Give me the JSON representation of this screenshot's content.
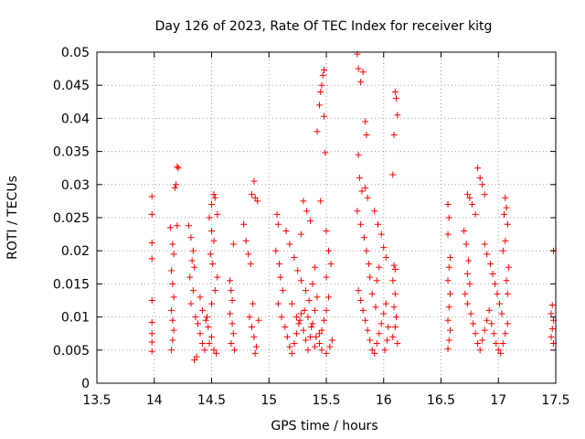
{
  "chart_data": {
    "type": "scatter",
    "title": "Day 126 of 2023, Rate Of TEC Index for receiver kitg",
    "xlabel": "GPS time / hours",
    "ylabel": "ROTI / TECUs",
    "xlim": [
      13.5,
      17.5
    ],
    "ylim": [
      0,
      0.05
    ],
    "x_ticks": [
      13.5,
      14,
      14.5,
      15,
      15.5,
      16,
      16.5,
      17,
      17.5
    ],
    "x_tick_labels": [
      "13.5",
      "14",
      "14.5",
      "15",
      "15.5",
      "16",
      "16.5",
      "17",
      "17.5"
    ],
    "y_ticks": [
      0,
      0.005,
      0.01,
      0.015,
      0.02,
      0.025,
      0.03,
      0.035,
      0.04,
      0.045,
      0.05
    ],
    "y_tick_labels": [
      "0",
      "0.005",
      "0.01",
      "0.015",
      "0.02",
      "0.025",
      "0.03",
      "0.035",
      "0.04",
      "0.045",
      "0.05"
    ],
    "grid": true,
    "marker": "plus",
    "series_color": "#ff0000",
    "series": [
      {
        "name": "ROTI",
        "points": [
          [
            13.98,
            0.0282
          ],
          [
            13.98,
            0.0255
          ],
          [
            13.98,
            0.0212
          ],
          [
            13.98,
            0.0188
          ],
          [
            13.98,
            0.0092
          ],
          [
            13.98,
            0.0075
          ],
          [
            13.98,
            0.0062
          ],
          [
            13.98,
            0.0048
          ],
          [
            13.98,
            0.0125
          ],
          [
            14.14,
            0.0235
          ],
          [
            14.16,
            0.021
          ],
          [
            14.17,
            0.0195
          ],
          [
            14.15,
            0.017
          ],
          [
            14.16,
            0.015
          ],
          [
            14.17,
            0.013
          ],
          [
            14.15,
            0.011
          ],
          [
            14.16,
            0.0095
          ],
          [
            14.17,
            0.008
          ],
          [
            14.16,
            0.0065
          ],
          [
            14.15,
            0.005
          ],
          [
            14.18,
            0.0295
          ],
          [
            14.19,
            0.03
          ],
          [
            14.2,
            0.0327
          ],
          [
            14.21,
            0.0325
          ],
          [
            14.2,
            0.0238
          ],
          [
            14.3,
            0.0238
          ],
          [
            14.32,
            0.022
          ],
          [
            14.34,
            0.02
          ],
          [
            14.33,
            0.0185
          ],
          [
            14.35,
            0.0175
          ],
          [
            14.31,
            0.016
          ],
          [
            14.34,
            0.014
          ],
          [
            14.32,
            0.012
          ],
          [
            14.36,
            0.01
          ],
          [
            14.38,
            0.009
          ],
          [
            14.4,
            0.0075
          ],
          [
            14.42,
            0.006
          ],
          [
            14.44,
            0.005
          ],
          [
            14.37,
            0.004
          ],
          [
            14.35,
            0.0035
          ],
          [
            14.4,
            0.013
          ],
          [
            14.42,
            0.011
          ],
          [
            14.45,
            0.0095
          ],
          [
            14.47,
            0.0085
          ],
          [
            14.5,
            0.007
          ],
          [
            14.48,
            0.006
          ],
          [
            14.52,
            0.005
          ],
          [
            14.54,
            0.0045
          ],
          [
            14.46,
            0.01
          ],
          [
            14.5,
            0.012
          ],
          [
            14.53,
            0.014
          ],
          [
            14.55,
            0.016
          ],
          [
            14.51,
            0.018
          ],
          [
            14.49,
            0.0195
          ],
          [
            14.52,
            0.0215
          ],
          [
            14.5,
            0.023
          ],
          [
            14.48,
            0.025
          ],
          [
            14.5,
            0.027
          ],
          [
            14.52,
            0.0285
          ],
          [
            14.53,
            0.028
          ],
          [
            14.55,
            0.0255
          ],
          [
            14.66,
            0.0155
          ],
          [
            14.67,
            0.014
          ],
          [
            14.68,
            0.0125
          ],
          [
            14.66,
            0.0105
          ],
          [
            14.68,
            0.009
          ],
          [
            14.69,
            0.0075
          ],
          [
            14.67,
            0.006
          ],
          [
            14.7,
            0.005
          ],
          [
            14.69,
            0.021
          ],
          [
            14.78,
            0.024
          ],
          [
            14.8,
            0.0215
          ],
          [
            14.82,
            0.0195
          ],
          [
            14.84,
            0.018
          ],
          [
            14.85,
            0.0285
          ],
          [
            14.87,
            0.0305
          ],
          [
            14.88,
            0.028
          ],
          [
            14.9,
            0.0275
          ],
          [
            14.83,
            0.01
          ],
          [
            14.85,
            0.0085
          ],
          [
            14.87,
            0.007
          ],
          [
            14.89,
            0.0055
          ],
          [
            14.86,
            0.012
          ],
          [
            14.91,
            0.0095
          ],
          [
            14.88,
            0.0045
          ],
          [
            15.07,
            0.0255
          ],
          [
            15.08,
            0.024
          ],
          [
            15.06,
            0.02
          ],
          [
            15.09,
            0.018
          ],
          [
            15.1,
            0.016
          ],
          [
            15.12,
            0.014
          ],
          [
            15.08,
            0.012
          ],
          [
            15.11,
            0.01
          ],
          [
            15.14,
            0.0085
          ],
          [
            15.16,
            0.007
          ],
          [
            15.18,
            0.0055
          ],
          [
            15.2,
            0.0045
          ],
          [
            15.22,
            0.006
          ],
          [
            15.24,
            0.0075
          ],
          [
            15.26,
            0.009
          ],
          [
            15.28,
            0.0105
          ],
          [
            15.3,
            0.008
          ],
          [
            15.32,
            0.0065
          ],
          [
            15.34,
            0.005
          ],
          [
            15.36,
            0.007
          ],
          [
            15.38,
            0.009
          ],
          [
            15.4,
            0.011
          ],
          [
            15.42,
            0.013
          ],
          [
            15.15,
            0.023
          ],
          [
            15.18,
            0.021
          ],
          [
            15.22,
            0.019
          ],
          [
            15.25,
            0.017
          ],
          [
            15.28,
            0.0155
          ],
          [
            15.32,
            0.014
          ],
          [
            15.35,
            0.0125
          ],
          [
            15.38,
            0.015
          ],
          [
            15.4,
            0.0175
          ],
          [
            15.3,
            0.0275
          ],
          [
            15.33,
            0.026
          ],
          [
            15.36,
            0.0245
          ],
          [
            15.28,
            0.0225
          ],
          [
            15.2,
            0.012
          ],
          [
            15.24,
            0.01
          ],
          [
            15.27,
            0.0095
          ],
          [
            15.31,
            0.011
          ],
          [
            15.34,
            0.01
          ],
          [
            15.37,
            0.0085
          ],
          [
            15.41,
            0.007
          ],
          [
            15.44,
            0.006
          ],
          [
            15.46,
            0.008
          ],
          [
            15.48,
            0.0095
          ],
          [
            15.5,
            0.011
          ],
          [
            15.52,
            0.013
          ],
          [
            15.5,
            0.016
          ],
          [
            15.42,
            0.038
          ],
          [
            15.44,
            0.042
          ],
          [
            15.45,
            0.044
          ],
          [
            15.46,
            0.045
          ],
          [
            15.47,
            0.0465
          ],
          [
            15.48,
            0.0473
          ],
          [
            15.48,
            0.0403
          ],
          [
            15.49,
            0.0348
          ],
          [
            15.45,
            0.0275
          ],
          [
            15.5,
            0.023
          ],
          [
            15.52,
            0.02
          ],
          [
            15.54,
            0.018
          ],
          [
            15.46,
            0.005
          ],
          [
            15.5,
            0.0045
          ],
          [
            15.53,
            0.0055
          ],
          [
            15.55,
            0.0065
          ],
          [
            15.44,
            0.0075
          ],
          [
            15.4,
            0.0055
          ],
          [
            15.77,
            0.0497
          ],
          [
            15.78,
            0.0475
          ],
          [
            15.8,
            0.0455
          ],
          [
            15.82,
            0.047
          ],
          [
            15.84,
            0.0395
          ],
          [
            15.85,
            0.0375
          ],
          [
            15.78,
            0.0345
          ],
          [
            15.79,
            0.031
          ],
          [
            15.81,
            0.029
          ],
          [
            15.84,
            0.0295
          ],
          [
            15.86,
            0.028
          ],
          [
            15.77,
            0.026
          ],
          [
            15.8,
            0.024
          ],
          [
            15.83,
            0.022
          ],
          [
            15.85,
            0.02
          ],
          [
            15.87,
            0.018
          ],
          [
            15.88,
            0.016
          ],
          [
            15.78,
            0.014
          ],
          [
            15.8,
            0.0125
          ],
          [
            15.82,
            0.011
          ],
          [
            15.84,
            0.0095
          ],
          [
            15.86,
            0.008
          ],
          [
            15.88,
            0.0065
          ],
          [
            15.9,
            0.005
          ],
          [
            15.92,
            0.0045
          ],
          [
            15.94,
            0.006
          ],
          [
            15.96,
            0.0075
          ],
          [
            15.98,
            0.009
          ],
          [
            16.0,
            0.0105
          ],
          [
            16.02,
            0.012
          ],
          [
            16.04,
            0.0085
          ],
          [
            16.03,
            0.0065
          ],
          [
            16.01,
            0.005
          ],
          [
            15.92,
            0.026
          ],
          [
            15.95,
            0.024
          ],
          [
            15.98,
            0.0225
          ],
          [
            16.0,
            0.0205
          ],
          [
            16.02,
            0.019
          ],
          [
            15.96,
            0.0175
          ],
          [
            15.94,
            0.0155
          ],
          [
            15.9,
            0.0135
          ],
          [
            15.93,
            0.0115
          ],
          [
            16.1,
            0.044
          ],
          [
            16.11,
            0.043
          ],
          [
            16.12,
            0.0405
          ],
          [
            16.09,
            0.0375
          ],
          [
            16.08,
            0.0315
          ],
          [
            16.09,
            0.0178
          ],
          [
            16.1,
            0.0172
          ],
          [
            16.08,
            0.0155
          ],
          [
            16.1,
            0.0135
          ],
          [
            16.09,
            0.0115
          ],
          [
            16.11,
            0.01
          ],
          [
            16.1,
            0.0085
          ],
          [
            16.08,
            0.007
          ],
          [
            16.12,
            0.006
          ],
          [
            16.56,
            0.027
          ],
          [
            16.57,
            0.025
          ],
          [
            16.56,
            0.0225
          ],
          [
            16.58,
            0.019
          ],
          [
            16.57,
            0.0175
          ],
          [
            16.56,
            0.0155
          ],
          [
            16.58,
            0.0135
          ],
          [
            16.57,
            0.0115
          ],
          [
            16.56,
            0.0095
          ],
          [
            16.58,
            0.008
          ],
          [
            16.57,
            0.0065
          ],
          [
            16.56,
            0.0052
          ],
          [
            16.7,
            0.023
          ],
          [
            16.72,
            0.021
          ],
          [
            16.74,
            0.0185
          ],
          [
            16.73,
            0.0165
          ],
          [
            16.75,
            0.015
          ],
          [
            16.71,
            0.0135
          ],
          [
            16.73,
            0.012
          ],
          [
            16.76,
            0.0105
          ],
          [
            16.78,
            0.009
          ],
          [
            16.8,
            0.0075
          ],
          [
            16.82,
            0.006
          ],
          [
            16.84,
            0.005
          ],
          [
            16.86,
            0.0065
          ],
          [
            16.88,
            0.008
          ],
          [
            16.9,
            0.0095
          ],
          [
            16.92,
            0.011
          ],
          [
            16.94,
            0.009
          ],
          [
            16.96,
            0.0075
          ],
          [
            16.98,
            0.006
          ],
          [
            17.0,
            0.005
          ],
          [
            17.02,
            0.0045
          ],
          [
            17.04,
            0.006
          ],
          [
            17.06,
            0.0075
          ],
          [
            17.08,
            0.009
          ],
          [
            16.73,
            0.0285
          ],
          [
            16.75,
            0.028
          ],
          [
            16.77,
            0.027
          ],
          [
            16.8,
            0.0255
          ],
          [
            16.82,
            0.0325
          ],
          [
            16.84,
            0.031
          ],
          [
            16.86,
            0.03
          ],
          [
            16.88,
            0.021
          ],
          [
            16.9,
            0.0195
          ],
          [
            16.93,
            0.018
          ],
          [
            16.95,
            0.0165
          ],
          [
            16.97,
            0.015
          ],
          [
            16.99,
            0.0135
          ],
          [
            17.01,
            0.012
          ],
          [
            17.03,
            0.0105
          ],
          [
            16.88,
            0.0285
          ],
          [
            17.06,
            0.028
          ],
          [
            17.07,
            0.0265
          ],
          [
            17.05,
            0.0255
          ],
          [
            17.08,
            0.024
          ],
          [
            17.06,
            0.0215
          ],
          [
            17.04,
            0.02
          ],
          [
            17.09,
            0.0175
          ],
          [
            17.07,
            0.0155
          ],
          [
            17.08,
            0.0135
          ],
          [
            17.48,
            0.02
          ],
          [
            17.47,
            0.0118
          ],
          [
            17.46,
            0.0105
          ],
          [
            17.48,
            0.0095
          ],
          [
            17.47,
            0.0082
          ],
          [
            17.46,
            0.007
          ],
          [
            17.48,
            0.006
          ]
        ]
      }
    ]
  }
}
